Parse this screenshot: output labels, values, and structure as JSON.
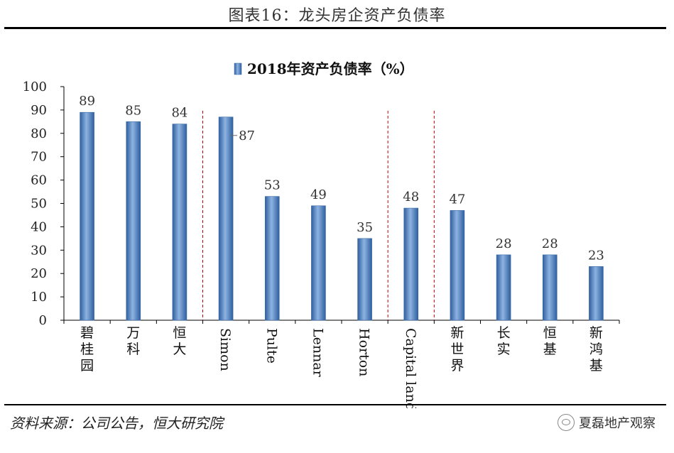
{
  "figure_title": "图表16：龙头房企资产负债率",
  "source_note": "资料来源：公司公告，恒大研究院",
  "watermark": "夏磊地产观察",
  "colors": {
    "bar": "#4f81bd",
    "bar_edge": "#3a6aa5",
    "divider": "#cc0000",
    "axis": "#000000"
  },
  "chart_data": {
    "type": "bar",
    "title": "2018年资产负债率（%）",
    "categories": [
      "碧桂园",
      "万科",
      "恒大",
      "Simon",
      "Pulte",
      "Lennar",
      "Horton",
      "Capital land",
      "新世界",
      "长实",
      "恒基",
      "新鸿基"
    ],
    "series": [
      {
        "name": "2018年资产负债率（%）",
        "values": [
          89,
          85,
          84,
          87,
          53,
          49,
          35,
          48,
          47,
          28,
          28,
          23
        ]
      }
    ],
    "value_labels": [
      "89",
      "85",
      "84",
      "87",
      "53",
      "49",
      "35",
      "48",
      "47",
      "28",
      "28",
      "23"
    ],
    "ylim": [
      0,
      100
    ],
    "yticks": [
      0,
      10,
      20,
      30,
      40,
      50,
      60,
      70,
      80,
      90,
      100
    ],
    "grid": false,
    "legend_position": "top-center",
    "dividers_after_category": [
      "恒大",
      "Horton",
      "Capital land"
    ],
    "vertical_label_categories": [
      "碧桂园",
      "万科",
      "恒大",
      "新世界",
      "长实",
      "恒基",
      "新鸿基"
    ]
  }
}
